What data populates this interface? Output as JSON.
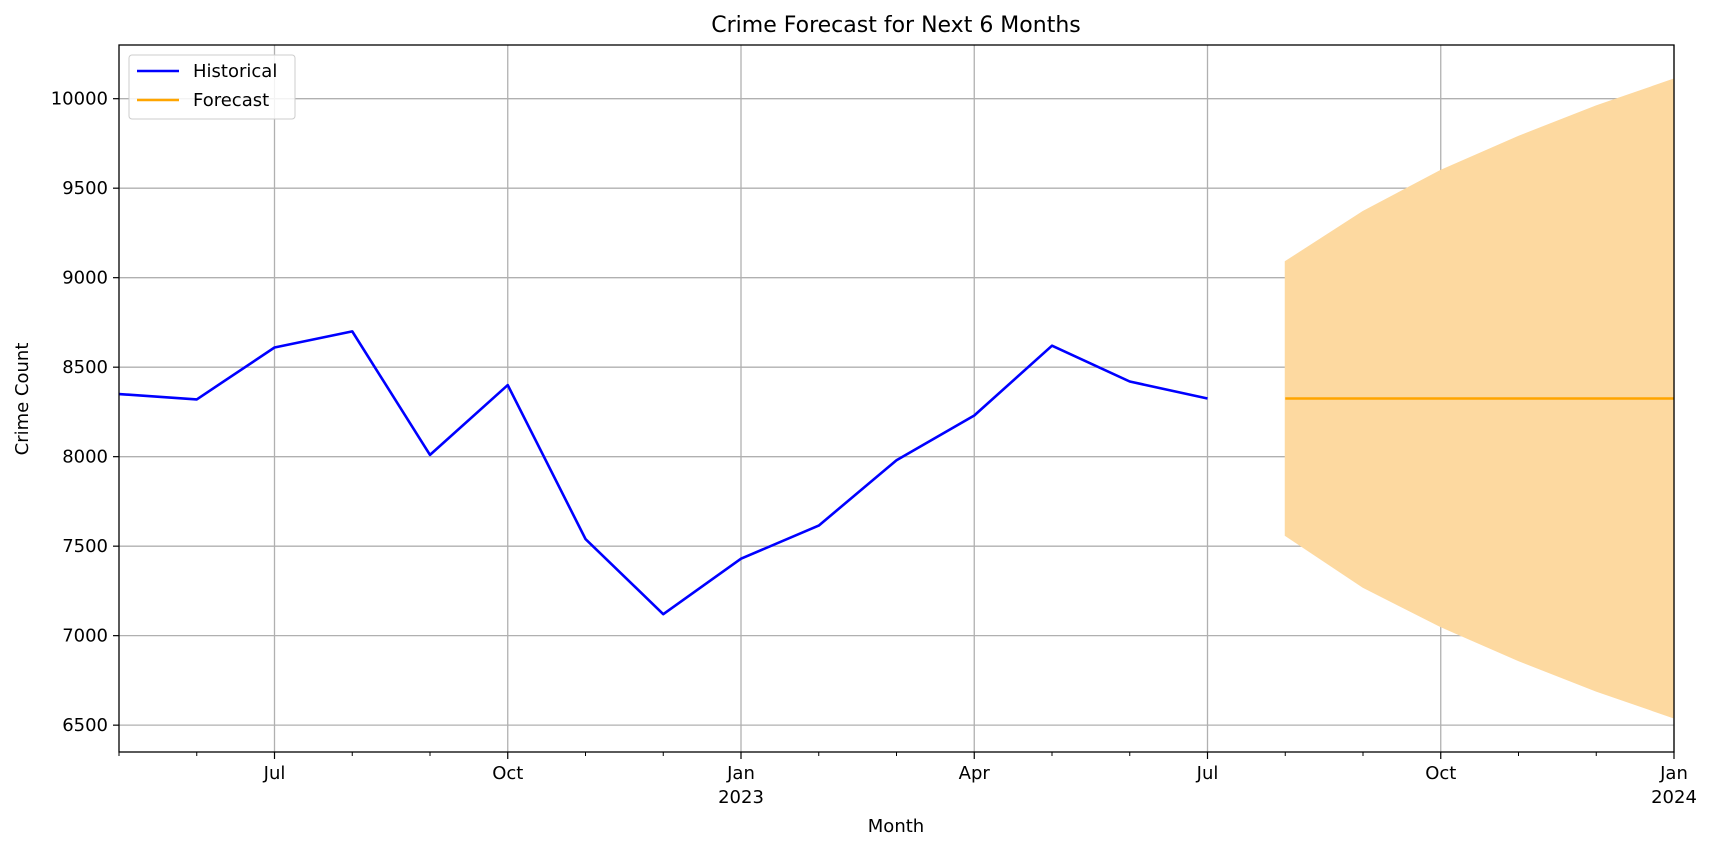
{
  "chart_data": {
    "type": "line",
    "title": "Crime Forecast for Next 6 Months",
    "xlabel": "Month",
    "ylabel": "Crime Count",
    "x_range": [
      "2022-05",
      "2024-01"
    ],
    "ylim": [
      6350,
      10300
    ],
    "y_ticks": [
      6500,
      7000,
      7500,
      8000,
      8500,
      9000,
      9500,
      10000
    ],
    "x_major_ticks": [
      {
        "date": "2022-07",
        "label": "Jul",
        "sub": ""
      },
      {
        "date": "2022-10",
        "label": "Oct",
        "sub": ""
      },
      {
        "date": "2023-01",
        "label": "Jan",
        "sub": "2023"
      },
      {
        "date": "2023-04",
        "label": "Apr",
        "sub": ""
      },
      {
        "date": "2023-07",
        "label": "Jul",
        "sub": ""
      },
      {
        "date": "2023-10",
        "label": "Oct",
        "sub": ""
      },
      {
        "date": "2024-01",
        "label": "Jan",
        "sub": "2024"
      }
    ],
    "x_minor_ticks": [
      "2022-05",
      "2022-06",
      "2022-08",
      "2022-09",
      "2022-11",
      "2022-12",
      "2023-02",
      "2023-03",
      "2023-05",
      "2023-06",
      "2023-08",
      "2023-09",
      "2023-11",
      "2023-12"
    ],
    "grid": true,
    "legend_position": "top-left",
    "series": [
      {
        "name": "Historical",
        "color": "#0000ff",
        "x": [
          "2022-05",
          "2022-06",
          "2022-07",
          "2022-08",
          "2022-09",
          "2022-10",
          "2022-11",
          "2022-12",
          "2023-01",
          "2023-02",
          "2023-03",
          "2023-04",
          "2023-05",
          "2023-06",
          "2023-07"
        ],
        "values": [
          8350,
          8320,
          8610,
          8700,
          8010,
          8400,
          7540,
          7120,
          7430,
          7615,
          7980,
          8230,
          8620,
          8420,
          8325
        ]
      },
      {
        "name": "Forecast",
        "color": "#ffa500",
        "x": [
          "2023-08",
          "2023-09",
          "2023-10",
          "2023-11",
          "2023-12",
          "2024-01"
        ],
        "values": [
          8325,
          8325,
          8325,
          8325,
          8325,
          8325
        ]
      }
    ],
    "confidence_band": {
      "color": "#fdd9a0",
      "x": [
        "2023-08",
        "2023-09",
        "2023-10",
        "2023-11",
        "2023-12",
        "2024-01"
      ],
      "lower": [
        7560,
        7270,
        7050,
        6860,
        6690,
        6540
      ],
      "upper": [
        9090,
        9370,
        9600,
        9790,
        9960,
        10110
      ]
    }
  }
}
